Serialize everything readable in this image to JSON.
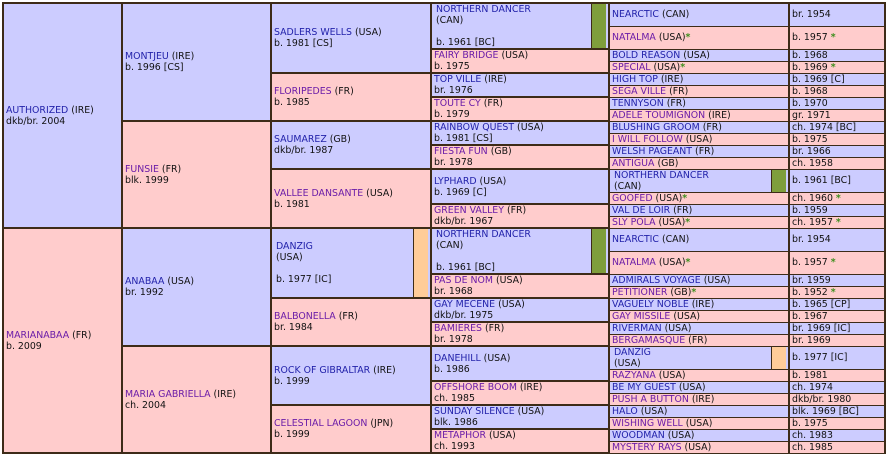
{
  "pedigree": {
    "gen1": [
      {
        "name": "AUTHORIZED",
        "country": "(IRE)",
        "info": "dkb/br. 2004"
      },
      {
        "name": "MARIANABAA",
        "country": "(FR)",
        "info": "b. 2009"
      }
    ],
    "gen2": [
      {
        "name": "MONTJEU",
        "country": "(IRE)",
        "info": "b. 1996 [CS]"
      },
      {
        "name": "FUNSIE",
        "country": "(FR)",
        "info": "blk. 1999"
      },
      {
        "name": "ANABAA",
        "country": "(USA)",
        "info": "br. 1992"
      },
      {
        "name": "MARIA GABRIELLA",
        "country": "(IRE)",
        "info": "ch. 2004"
      }
    ],
    "gen3": [
      {
        "name": "SADLERS WELLS",
        "country": "(USA)",
        "info": "b. 1981 [CS]",
        "star": ""
      },
      {
        "name": "FLORIPEDES",
        "country": "(FR)",
        "info": "b. 1985",
        "star": "*"
      },
      {
        "name": "SAUMAREZ",
        "country": "(GB)",
        "info": "dkb/br. 1987",
        "star": ""
      },
      {
        "name": "VALLEE DANSANTE",
        "country": "(USA)",
        "info": "b. 1981",
        "star": ""
      },
      {
        "name": "DANZIG",
        "country": "(USA)",
        "info": "b. 1977 [IC]",
        "star": ""
      },
      {
        "name": "BALBONELLA",
        "country": "(FR)",
        "info": "br. 1984",
        "star": ""
      },
      {
        "name": "ROCK OF GIBRALTAR",
        "country": "(IRE)",
        "info": "b. 1999",
        "star": ""
      },
      {
        "name": "CELESTIAL LAGOON",
        "country": "(JPN)",
        "info": "b. 1999",
        "star": ""
      }
    ],
    "gen4": [
      {
        "name": "NORTHERN DANCER",
        "country": "(CAN)",
        "info": "b. 1961 [BC]",
        "star": ""
      },
      {
        "name": "FAIRY BRIDGE",
        "country": "(USA)",
        "info": "b. 1975",
        "star": "*"
      },
      {
        "name": "TOP VILLE",
        "country": "(IRE)",
        "info": "br. 1976",
        "star": ""
      },
      {
        "name": "TOUTE CY",
        "country": "(FR)",
        "info": "b. 1979",
        "star": ""
      },
      {
        "name": "RAINBOW QUEST",
        "country": "(USA)",
        "info": "b. 1981 [CS]",
        "star": ""
      },
      {
        "name": "FIESTA FUN",
        "country": "(GB)",
        "info": "br. 1978",
        "star": ""
      },
      {
        "name": "LYPHARD",
        "country": "(USA)",
        "info": "b. 1969 [C]",
        "star": ""
      },
      {
        "name": "GREEN VALLEY",
        "country": "(FR)",
        "info": "dkb/br. 1967",
        "star": ""
      },
      {
        "name": "NORTHERN DANCER",
        "country": "(CAN)",
        "info": "b. 1961 [BC]",
        "star": ""
      },
      {
        "name": "PAS DE NOM",
        "country": "(USA)",
        "info": "br. 1968",
        "star": ""
      },
      {
        "name": "GAY MECENE",
        "country": "(USA)",
        "info": "dkb/br. 1975",
        "star": ""
      },
      {
        "name": "BAMIERES",
        "country": "(FR)",
        "info": "br. 1978",
        "star": ""
      },
      {
        "name": "DANEHILL",
        "country": "(USA)",
        "info": "b. 1986",
        "star": ""
      },
      {
        "name": "OFFSHORE BOOM",
        "country": "(IRE)",
        "info": "ch. 1985",
        "star": ""
      },
      {
        "name": "SUNDAY SILENCE",
        "country": "(USA)",
        "info": "blk. 1986",
        "star": ""
      },
      {
        "name": "METAPHOR",
        "country": "(USA)",
        "info": "ch. 1993",
        "star": ""
      }
    ],
    "gen5": [
      {
        "name": "NEARCTIC",
        "country": "(CAN)",
        "info": "br. 1954",
        "star": ""
      },
      {
        "name": "NATALMA",
        "country": "(USA)",
        "info": "b. 1957",
        "star": "*"
      },
      {
        "name": "BOLD REASON",
        "country": "(USA)",
        "info": "b. 1968",
        "star": ""
      },
      {
        "name": "SPECIAL",
        "country": "(USA)",
        "info": "b. 1969",
        "star": "*"
      },
      {
        "name": "HIGH TOP",
        "country": "(IRE)",
        "info": "b. 1969 [C]",
        "star": ""
      },
      {
        "name": "SEGA VILLE",
        "country": "(FR)",
        "info": "b. 1968",
        "star": ""
      },
      {
        "name": "TENNYSON",
        "country": "(FR)",
        "info": "b. 1970",
        "star": ""
      },
      {
        "name": "ADELE TOUMIGNON",
        "country": "(IRE)",
        "info": "gr. 1971",
        "star": ""
      },
      {
        "name": "BLUSHING GROOM",
        "country": "(FR)",
        "info": "ch. 1974 [BC]",
        "star": ""
      },
      {
        "name": "I WILL FOLLOW",
        "country": "(USA)",
        "info": "b. 1975",
        "star": ""
      },
      {
        "name": "WELSH PAGEANT",
        "country": "(FR)",
        "info": "br. 1966",
        "star": ""
      },
      {
        "name": "ANTIGUA",
        "country": "(GB)",
        "info": "ch. 1958",
        "star": ""
      },
      {
        "name": "NORTHERN DANCER",
        "country": "(CAN)",
        "info": "b. 1961 [BC]",
        "star": ""
      },
      {
        "name": "GOOFED",
        "country": "(USA)",
        "info": "ch. 1960",
        "star": "*"
      },
      {
        "name": "VAL DE LOIR",
        "country": "(FR)",
        "info": "b. 1959",
        "star": ""
      },
      {
        "name": "SLY POLA",
        "country": "(USA)",
        "info": "ch. 1957",
        "star": "*"
      },
      {
        "name": "NEARCTIC",
        "country": "(CAN)",
        "info": "br. 1954",
        "star": ""
      },
      {
        "name": "NATALMA",
        "country": "(USA)",
        "info": "b. 1957",
        "star": "*"
      },
      {
        "name": "ADMIRALS VOYAGE",
        "country": "(USA)",
        "info": "br. 1959",
        "star": ""
      },
      {
        "name": "PETITIONER",
        "country": "(GB)",
        "info": "b. 1952",
        "star": "*"
      },
      {
        "name": "VAGUELY NOBLE",
        "country": "(IRE)",
        "info": "b. 1965 [CP]",
        "star": ""
      },
      {
        "name": "GAY MISSILE",
        "country": "(USA)",
        "info": "b. 1967",
        "star": ""
      },
      {
        "name": "RIVERMAN",
        "country": "(USA)",
        "info": "br. 1969 [IC]",
        "star": ""
      },
      {
        "name": "BERGAMASQUE",
        "country": "(FR)",
        "info": "br. 1969",
        "star": ""
      },
      {
        "name": "DANZIG",
        "country": "(USA)",
        "info": "b. 1977 [IC]",
        "star": ""
      },
      {
        "name": "RAZYANA",
        "country": "(USA)",
        "info": "b. 1981",
        "star": ""
      },
      {
        "name": "BE MY GUEST",
        "country": "(USA)",
        "info": "ch. 1974",
        "star": ""
      },
      {
        "name": "PUSH A BUTTON",
        "country": "(IRE)",
        "info": "dkb/br. 1980",
        "star": ""
      },
      {
        "name": "HALO",
        "country": "(USA)",
        "info": "blk. 1969 [BC]",
        "star": ""
      },
      {
        "name": "WISHING WELL",
        "country": "(USA)",
        "info": "b. 1975",
        "star": ""
      },
      {
        "name": "WOODMAN",
        "country": "(USA)",
        "info": "ch. 1983",
        "star": ""
      },
      {
        "name": "MYSTERY RAYS",
        "country": "(USA)",
        "info": "ch. 1985",
        "star": ""
      }
    ]
  },
  "colors": {
    "male_bg": "#ccccff",
    "female_bg": "#ffcccc",
    "border": "#3d2b18",
    "inbreeding_green": "#7f9e3c",
    "inbreeding_orange": "#ffcc99",
    "star": "#3f8f1f"
  }
}
